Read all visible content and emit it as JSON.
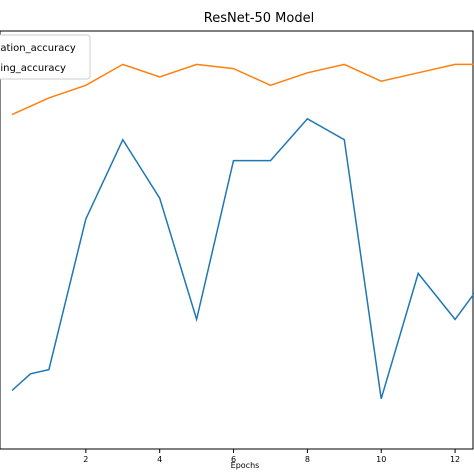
{
  "chart_data": {
    "type": "line",
    "title": "ResNet-50 Model",
    "xlabel": "Epochs",
    "ylabel": "",
    "xlim": [
      0,
      13
    ],
    "ylim": [
      0,
      100
    ],
    "xticks": [
      2,
      4,
      6,
      8,
      10,
      12
    ],
    "xtick_labels": [
      "2",
      "4",
      "6",
      "8",
      "10",
      "12"
    ],
    "grid": false,
    "legend_position": "top-left",
    "x": [
      0,
      0.5,
      1,
      2,
      3,
      4,
      5,
      6,
      7,
      8,
      9,
      10,
      11,
      12,
      13
    ],
    "series": [
      {
        "name": "validation_accuracy",
        "legend_text": "dation_accuracy",
        "color": "#1f77b4",
        "values": [
          14,
          18,
          19,
          55,
          74,
          60,
          31,
          69,
          69,
          79,
          74,
          12,
          42,
          31,
          43
        ]
      },
      {
        "name": "training_accuracy",
        "legend_text": "ning_accuracy",
        "color": "#ff7f0e",
        "values": [
          80,
          82,
          84,
          87,
          92,
          89,
          92,
          91,
          87,
          90,
          92,
          88,
          90,
          92,
          92
        ]
      }
    ]
  }
}
